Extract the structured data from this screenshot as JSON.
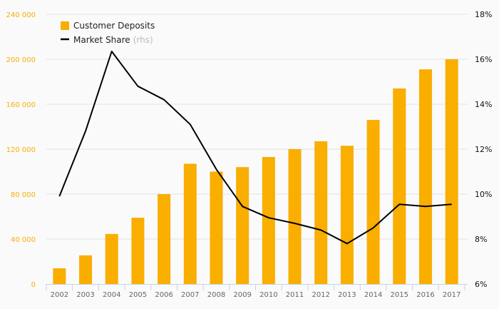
{
  "chart_data": {
    "type": "bar+line",
    "title": "",
    "categories": [
      "2002",
      "2003",
      "2004",
      "2005",
      "2006",
      "2007",
      "2008",
      "2009",
      "2010",
      "2011",
      "2012",
      "2013",
      "2014",
      "2015",
      "2016",
      "2017"
    ],
    "series": [
      {
        "name": "Customer Deposits",
        "type": "bar",
        "axis": "left",
        "color": "#f9ae00",
        "values": [
          14000,
          25500,
          44500,
          59000,
          80000,
          107000,
          100000,
          104000,
          113000,
          120000,
          127000,
          123000,
          146000,
          174000,
          191000,
          200000
        ]
      },
      {
        "name": "Market Share",
        "name_suffix": "(rhs)",
        "type": "line",
        "axis": "right",
        "color": "#000000",
        "values": [
          9.9,
          12.8,
          16.35,
          14.8,
          14.2,
          13.1,
          11.1,
          9.45,
          8.95,
          8.7,
          8.4,
          7.8,
          8.5,
          9.55,
          9.45,
          9.55
        ]
      }
    ],
    "left_axis": {
      "ylim": [
        0,
        240000
      ],
      "ticks": [
        0,
        40000,
        80000,
        120000,
        160000,
        200000,
        240000
      ],
      "tick_labels": [
        "0",
        "40 000",
        "80 000",
        "120 000",
        "160 000",
        "200 000",
        "240 000"
      ]
    },
    "right_axis": {
      "ylim": [
        6,
        18
      ],
      "ticks": [
        6,
        8,
        10,
        12,
        14,
        16,
        18
      ],
      "tick_labels": [
        "6%",
        "8%",
        "10%",
        "12%",
        "14%",
        "16%",
        "18%"
      ]
    },
    "grid": true,
    "legend_position": "top-left"
  }
}
